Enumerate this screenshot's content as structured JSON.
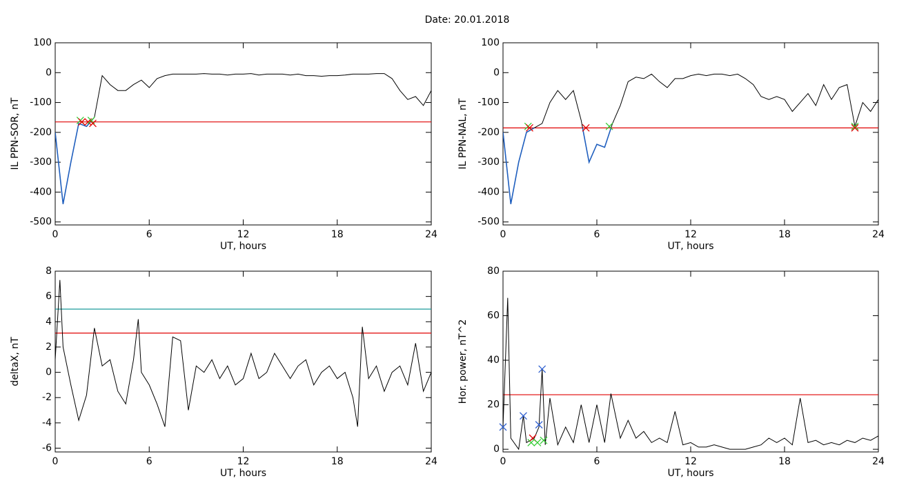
{
  "title": "Date:  20.01.2018",
  "chart_data": [
    {
      "type": "line",
      "ylabel": "IL PPN-SOR, nT",
      "xlabel": "UT, hours",
      "xlim": [
        0,
        24
      ],
      "xticks": [
        0,
        6,
        12,
        18,
        24
      ],
      "ylim": [
        -510,
        100
      ],
      "yticks": [
        -500,
        -400,
        -300,
        -200,
        -100,
        0,
        100
      ],
      "color": "#000000",
      "below_color": "#1f5fbf",
      "x": [
        0,
        0.5,
        1,
        1.5,
        2,
        2.5,
        3,
        3.5,
        4,
        4.5,
        5,
        5.5,
        6,
        6.5,
        7,
        7.5,
        8,
        8.5,
        9,
        9.5,
        10,
        10.5,
        11,
        11.5,
        12,
        12.5,
        13,
        13.5,
        14,
        14.5,
        15,
        15.5,
        16,
        16.5,
        17,
        17.5,
        18,
        18.5,
        19,
        19.5,
        20,
        20.5,
        21,
        21.5,
        22,
        22.5,
        23,
        23.5,
        24
      ],
      "values": [
        -200,
        -440,
        -300,
        -170,
        -180,
        -150,
        -10,
        -40,
        -60,
        -60,
        -40,
        -25,
        -50,
        -20,
        -10,
        -5,
        -5,
        -5,
        -5,
        -3,
        -5,
        -5,
        -8,
        -5,
        -5,
        -3,
        -8,
        -5,
        -5,
        -5,
        -8,
        -5,
        -10,
        -10,
        -12,
        -10,
        -10,
        -8,
        -5,
        -5,
        -5,
        -3,
        -3,
        -20,
        -60,
        -90,
        -80,
        -110,
        -60
      ],
      "thresholds": [
        {
          "value": -165,
          "color": "#e00000"
        }
      ],
      "markers": [
        {
          "x": 1.6,
          "y": -160,
          "color": "#33cc33"
        },
        {
          "x": 1.7,
          "y": -165,
          "color": "#e00000"
        },
        {
          "x": 2.1,
          "y": -165,
          "color": "#e00000"
        },
        {
          "x": 2.3,
          "y": -160,
          "color": "#33cc33"
        },
        {
          "x": 2.4,
          "y": -170,
          "color": "#e00000"
        }
      ]
    },
    {
      "type": "line",
      "ylabel": "IL PPN-NAL, nT",
      "xlabel": "UT, hours",
      "xlim": [
        0,
        24
      ],
      "xticks": [
        0,
        6,
        12,
        18,
        24
      ],
      "ylim": [
        -510,
        100
      ],
      "yticks": [
        -500,
        -400,
        -300,
        -200,
        -100,
        0,
        100
      ],
      "color": "#000000",
      "below_color": "#1f5fbf",
      "x": [
        0,
        0.5,
        1,
        1.5,
        2,
        2.5,
        3,
        3.5,
        4,
        4.5,
        5,
        5.5,
        6,
        6.5,
        7,
        7.5,
        8,
        8.5,
        9,
        9.5,
        10,
        10.5,
        11,
        11.5,
        12,
        12.5,
        13,
        13.5,
        14,
        14.5,
        15,
        15.5,
        16,
        16.5,
        17,
        17.5,
        18,
        18.5,
        19,
        19.5,
        20,
        20.5,
        21,
        21.5,
        22,
        22.5,
        23,
        23.5,
        24
      ],
      "values": [
        -200,
        -440,
        -300,
        -200,
        -185,
        -170,
        -100,
        -60,
        -90,
        -60,
        -160,
        -300,
        -240,
        -250,
        -170,
        -110,
        -30,
        -15,
        -20,
        -5,
        -30,
        -50,
        -20,
        -20,
        -10,
        -5,
        -10,
        -5,
        -5,
        -10,
        -5,
        -20,
        -40,
        -80,
        -90,
        -80,
        -90,
        -130,
        -100,
        -70,
        -110,
        -40,
        -90,
        -50,
        -40,
        -180,
        -100,
        -130,
        -90
      ],
      "thresholds": [
        {
          "value": -185,
          "color": "#e00000"
        }
      ],
      "markers": [
        {
          "x": 1.6,
          "y": -180,
          "color": "#33cc33"
        },
        {
          "x": 1.7,
          "y": -185,
          "color": "#e00000"
        },
        {
          "x": 5.3,
          "y": -185,
          "color": "#e00000"
        },
        {
          "x": 6.8,
          "y": -180,
          "color": "#33cc33"
        },
        {
          "x": 22.5,
          "y": -180,
          "color": "#33cc33"
        },
        {
          "x": 22.5,
          "y": -185,
          "color": "#e00000"
        }
      ]
    },
    {
      "type": "line",
      "ylabel": "deltaX, nT",
      "xlabel": "UT, hours",
      "xlim": [
        0,
        24
      ],
      "xticks": [
        0,
        6,
        12,
        18,
        24
      ],
      "ylim": [
        -6.3,
        8
      ],
      "yticks": [
        -6,
        -4,
        -2,
        0,
        2,
        4,
        6,
        8
      ],
      "color": "#000000",
      "x": [
        0,
        0.3,
        0.5,
        1,
        1.5,
        2,
        2.5,
        3,
        3.5,
        4,
        4.5,
        5,
        5.3,
        5.5,
        6,
        6.5,
        7,
        7.5,
        8,
        8.5,
        9,
        9.5,
        10,
        10.5,
        11,
        11.5,
        12,
        12.5,
        13,
        13.5,
        14,
        14.5,
        15,
        15.5,
        16,
        16.5,
        17,
        17.5,
        18,
        18.5,
        19,
        19.3,
        19.6,
        20,
        20.5,
        21,
        21.5,
        22,
        22.5,
        23,
        23.5,
        24
      ],
      "values": [
        1,
        7.3,
        2,
        -1,
        -3.8,
        -1.8,
        3.5,
        0.5,
        1,
        -1.5,
        -2.5,
        1,
        4.2,
        0,
        -1,
        -2.5,
        -4.3,
        2.8,
        2.5,
        -3,
        0.5,
        0,
        1,
        -0.5,
        0.5,
        -1,
        -0.5,
        1.5,
        -0.5,
        0,
        1.5,
        0.5,
        -0.5,
        0.5,
        1,
        -1,
        0,
        0.5,
        -0.5,
        0,
        -2,
        -4.3,
        3.6,
        -0.5,
        0.5,
        -1.5,
        0,
        0.5,
        -1,
        2.3,
        -1.5,
        0
      ],
      "thresholds": [
        {
          "value": 5,
          "color": "#1a9a9a"
        },
        {
          "value": 3.1,
          "color": "#e00000"
        }
      ],
      "markers": []
    },
    {
      "type": "line",
      "ylabel": "Hor. power, nT^2",
      "xlabel": "UT, hours",
      "xlim": [
        0,
        24
      ],
      "xticks": [
        0,
        6,
        12,
        18,
        24
      ],
      "ylim": [
        -1.2,
        80
      ],
      "yticks": [
        0,
        20,
        40,
        60,
        80
      ],
      "color": "#000000",
      "x": [
        0,
        0.3,
        0.5,
        1,
        1.3,
        1.5,
        2,
        2.3,
        2.5,
        2.7,
        3,
        3.5,
        4,
        4.5,
        5,
        5.5,
        6,
        6.5,
        6.9,
        7.5,
        8,
        8.5,
        9,
        9.5,
        10,
        10.5,
        11,
        11.5,
        12,
        12.5,
        13,
        13.5,
        14,
        14.5,
        15,
        15.5,
        16,
        16.5,
        17,
        17.5,
        18,
        18.5,
        19,
        19.5,
        20,
        20.5,
        21,
        21.5,
        22,
        22.5,
        23,
        23.5,
        24
      ],
      "values": [
        10,
        68,
        5,
        0,
        15,
        3,
        5,
        10,
        36,
        2,
        23,
        2,
        10,
        3,
        20,
        3,
        20,
        3,
        25,
        5,
        13,
        5,
        8,
        3,
        5,
        3,
        17,
        2,
        3,
        1,
        1,
        2,
        1,
        0,
        0,
        0,
        1,
        2,
        5,
        3,
        5,
        2,
        23,
        3,
        4,
        2,
        3,
        2,
        4,
        3,
        5,
        4,
        6
      ],
      "thresholds": [
        {
          "value": 24.5,
          "color": "#e00000"
        }
      ],
      "markers": [
        {
          "x": 0,
          "y": 10,
          "color": "#3060d0"
        },
        {
          "x": 1.3,
          "y": 15,
          "color": "#3060d0"
        },
        {
          "x": 2.3,
          "y": 11,
          "color": "#3060d0"
        },
        {
          "x": 2.5,
          "y": 36,
          "color": "#3060d0"
        },
        {
          "x": 1.9,
          "y": 5,
          "color": "#e00000"
        },
        {
          "x": 1.8,
          "y": 3,
          "color": "#33cc33"
        },
        {
          "x": 2.2,
          "y": 3,
          "color": "#33cc33"
        },
        {
          "x": 2.6,
          "y": 4,
          "color": "#33cc33"
        }
      ]
    }
  ]
}
